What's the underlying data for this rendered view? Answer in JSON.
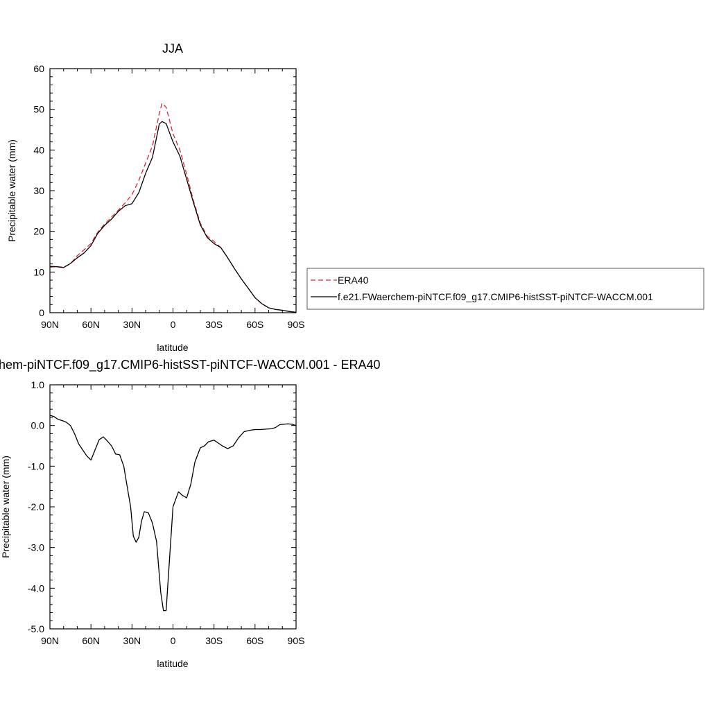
{
  "chart_data": [
    {
      "type": "line",
      "title": "JJA",
      "xlabel": "latitude",
      "ylabel": "Precipitable water (mm)",
      "xlim": [
        90,
        -90
      ],
      "ylim": [
        0,
        60
      ],
      "xticks": [
        {
          "value": 90,
          "label": "90N"
        },
        {
          "value": 60,
          "label": "60N"
        },
        {
          "value": 30,
          "label": "30N"
        },
        {
          "value": 0,
          "label": "0"
        },
        {
          "value": -30,
          "label": "30S"
        },
        {
          "value": -60,
          "label": "60S"
        },
        {
          "value": -90,
          "label": "90S"
        }
      ],
      "yticks": [
        {
          "value": 0,
          "label": "0"
        },
        {
          "value": 10,
          "label": "10"
        },
        {
          "value": 20,
          "label": "20"
        },
        {
          "value": 30,
          "label": "30"
        },
        {
          "value": 40,
          "label": "40"
        },
        {
          "value": 50,
          "label": "50"
        },
        {
          "value": 60,
          "label": "60"
        }
      ],
      "grid": false,
      "legend": {
        "placement": "right",
        "entries": [
          {
            "name": "ERA40",
            "color": "#e0202a",
            "dash": "dashed"
          },
          {
            "name": "f.e21.FWaerchem-piNTCF.f09_g17.CMIP6-histSST-piNTCF-WACCM.001",
            "color": "#000000",
            "dash": "solid"
          }
        ]
      },
      "series": [
        {
          "name": "ERA40",
          "color": "#e0202a",
          "dash": "dashed",
          "x": [
            90,
            85,
            80,
            75,
            70,
            65,
            60,
            55,
            50,
            45,
            40,
            35,
            30,
            25,
            20,
            15,
            10,
            8,
            5,
            0,
            -5,
            -10,
            -15,
            -20,
            -25,
            -30,
            -35,
            -40,
            -45,
            -50,
            -55,
            -60,
            -65,
            -70,
            -75,
            -80,
            -85,
            -90
          ],
          "y": [
            11.2,
            11.3,
            11.2,
            12.0,
            14.0,
            15.5,
            17.0,
            19.8,
            21.8,
            23.5,
            25.2,
            27.0,
            29.0,
            32.5,
            36.8,
            41.0,
            49.0,
            51.5,
            50.5,
            44.0,
            40.0,
            34.0,
            27.5,
            22.0,
            18.8,
            17.5,
            16.0,
            13.5,
            10.8,
            8.3,
            6.0,
            3.7,
            2.2,
            1.2,
            0.8,
            0.6,
            0.3,
            0.1
          ]
        },
        {
          "name": "f.e21.FWaerchem-piNTCF.f09_g17.CMIP6-histSST-piNTCF-WACCM.001",
          "color": "#000000",
          "dash": "solid",
          "x": [
            90,
            85,
            80,
            75,
            70,
            65,
            60,
            55,
            50,
            45,
            40,
            35,
            30,
            25,
            20,
            15,
            10,
            8,
            5,
            0,
            -5,
            -10,
            -15,
            -20,
            -25,
            -30,
            -35,
            -40,
            -45,
            -50,
            -55,
            -60,
            -65,
            -70,
            -75,
            -80,
            -85,
            -90
          ],
          "y": [
            11.4,
            11.3,
            11.1,
            12.1,
            13.5,
            14.7,
            16.5,
            19.5,
            21.5,
            23.0,
            24.9,
            26.3,
            26.8,
            29.5,
            34.3,
            38.2,
            46.4,
            47.0,
            46.5,
            42.0,
            38.5,
            32.8,
            27.0,
            21.6,
            18.5,
            17.0,
            16.0,
            13.5,
            10.8,
            8.3,
            6.0,
            3.7,
            2.2,
            1.2,
            0.8,
            0.6,
            0.3,
            0.1
          ]
        }
      ]
    },
    {
      "type": "line",
      "title": "hem-piNTCF.f09_g17.CMIP6-histSST-piNTCF-WACCM.001 - ERA40",
      "xlabel": "latitude",
      "ylabel": "Precipitable water (mm)",
      "xlim": [
        90,
        -90
      ],
      "ylim": [
        -5,
        1
      ],
      "xticks": [
        {
          "value": 90,
          "label": "90N"
        },
        {
          "value": 60,
          "label": "60N"
        },
        {
          "value": 30,
          "label": "30N"
        },
        {
          "value": 0,
          "label": "0"
        },
        {
          "value": -30,
          "label": "30S"
        },
        {
          "value": -60,
          "label": "60S"
        },
        {
          "value": -90,
          "label": "90S"
        }
      ],
      "yticks": [
        {
          "value": -5,
          "label": "-5.0"
        },
        {
          "value": -4,
          "label": "-4.0"
        },
        {
          "value": -3,
          "label": "-3.0"
        },
        {
          "value": -2,
          "label": "-2.0"
        },
        {
          "value": -1,
          "label": "-1.0"
        },
        {
          "value": 0,
          "label": "0.0"
        },
        {
          "value": 1,
          "label": "1.0"
        }
      ],
      "grid": false,
      "series": [
        {
          "color": "#000000",
          "dash": "solid",
          "x": [
            90,
            87,
            84,
            81,
            78,
            75,
            72,
            69,
            66,
            63,
            60,
            57,
            54,
            51,
            48,
            45,
            42,
            39,
            36,
            34,
            31,
            29,
            27,
            25,
            23,
            21,
            18,
            15,
            12,
            9,
            7,
            5,
            2,
            0,
            -4,
            -7,
            -10,
            -13,
            -16,
            -20,
            -23,
            -26,
            -30,
            -33,
            -36,
            -40,
            -44,
            -48,
            -52,
            -56,
            -60,
            -64,
            -68,
            -72,
            -75,
            -78,
            -81,
            -84,
            -87,
            -90
          ],
          "y": [
            0.25,
            0.22,
            0.15,
            0.12,
            0.08,
            0.0,
            -0.2,
            -0.45,
            -0.6,
            -0.75,
            -0.85,
            -0.6,
            -0.35,
            -0.28,
            -0.38,
            -0.5,
            -0.7,
            -0.72,
            -1.0,
            -1.4,
            -2.0,
            -2.72,
            -2.87,
            -2.75,
            -2.35,
            -2.12,
            -2.15,
            -2.4,
            -2.85,
            -4.1,
            -4.55,
            -4.55,
            -3.0,
            -2.0,
            -1.63,
            -1.72,
            -1.78,
            -1.45,
            -0.9,
            -0.55,
            -0.5,
            -0.4,
            -0.36,
            -0.43,
            -0.5,
            -0.57,
            -0.5,
            -0.3,
            -0.15,
            -0.12,
            -0.1,
            -0.1,
            -0.09,
            -0.08,
            -0.05,
            0.02,
            0.03,
            0.04,
            0.03,
            0.0
          ]
        }
      ]
    }
  ]
}
